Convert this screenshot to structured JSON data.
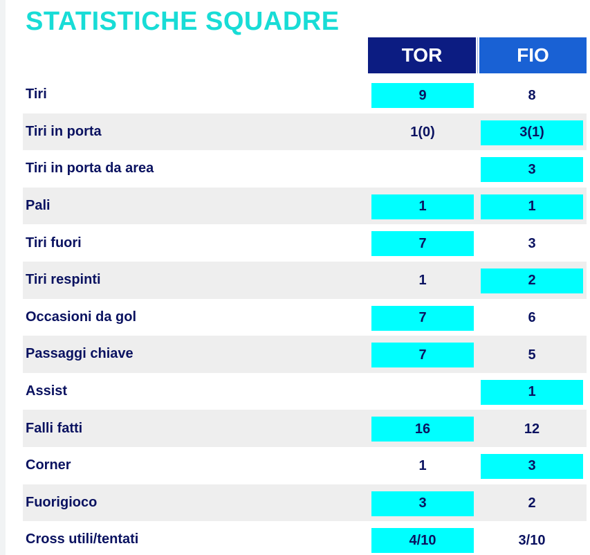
{
  "title": "STATISTICHE SQUADRE",
  "teams": {
    "home": "TOR",
    "away": "FIO"
  },
  "colors": {
    "title": "#18dcd6",
    "home_header": "#0c1c82",
    "away_header": "#1961d4",
    "highlight": "#00ffff",
    "text": "#0a1260",
    "row_shade": "#eeeeee"
  },
  "stats": [
    {
      "label": "Tiri",
      "home": "9",
      "away": "8",
      "home_hl": true,
      "away_hl": false
    },
    {
      "label": "Tiri in porta",
      "home": "1(0)",
      "away": "3(1)",
      "home_hl": false,
      "away_hl": true
    },
    {
      "label": "Tiri in porta da area",
      "home": "",
      "away": "3",
      "home_hl": false,
      "away_hl": true
    },
    {
      "label": "Pali",
      "home": "1",
      "away": "1",
      "home_hl": true,
      "away_hl": true
    },
    {
      "label": "Tiri fuori",
      "home": "7",
      "away": "3",
      "home_hl": true,
      "away_hl": false
    },
    {
      "label": "Tiri respinti",
      "home": "1",
      "away": "2",
      "home_hl": false,
      "away_hl": true
    },
    {
      "label": "Occasioni da gol",
      "home": "7",
      "away": "6",
      "home_hl": true,
      "away_hl": false
    },
    {
      "label": "Passaggi chiave",
      "home": "7",
      "away": "5",
      "home_hl": true,
      "away_hl": false
    },
    {
      "label": "Assist",
      "home": "",
      "away": "1",
      "home_hl": false,
      "away_hl": true
    },
    {
      "label": "Falli fatti",
      "home": "16",
      "away": "12",
      "home_hl": true,
      "away_hl": false
    },
    {
      "label": "Corner",
      "home": "1",
      "away": "3",
      "home_hl": false,
      "away_hl": true
    },
    {
      "label": "Fuorigioco",
      "home": "3",
      "away": "2",
      "home_hl": true,
      "away_hl": false
    },
    {
      "label": "Cross utili/tentati",
      "home": "4/10",
      "away": "3/10",
      "home_hl": true,
      "away_hl": false
    }
  ]
}
